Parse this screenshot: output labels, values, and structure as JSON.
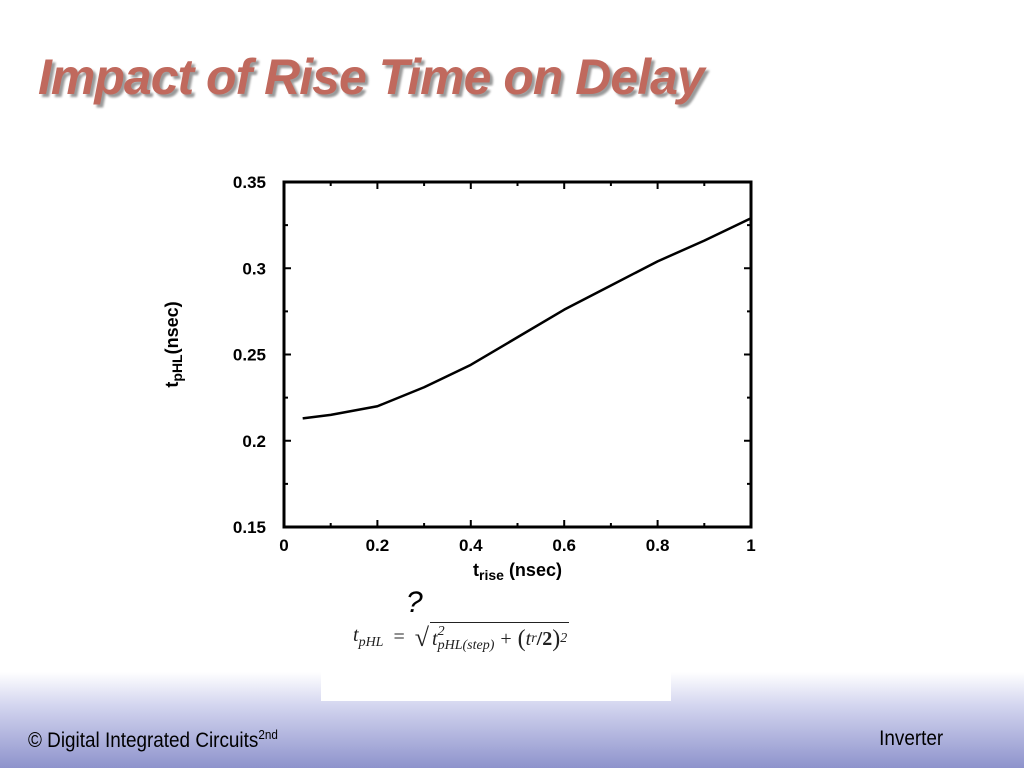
{
  "slide": {
    "title": "Impact of Rise Time on Delay",
    "title_color": "#c0695d"
  },
  "chart_data": {
    "type": "line",
    "xlabel": {
      "main": "t",
      "sub": "rise",
      "unit": " (nsec)"
    },
    "ylabel": {
      "main": "t",
      "sub": "pHL",
      "unit": "(nsec)"
    },
    "xlim": [
      0,
      1
    ],
    "ylim": [
      0.15,
      0.35
    ],
    "x_ticks": [
      0,
      0.2,
      0.4,
      0.6,
      0.8,
      1
    ],
    "x_tick_labels": [
      "0",
      "0.2",
      "0.4",
      "0.6",
      "0.8",
      "1"
    ],
    "y_ticks": [
      0.15,
      0.2,
      0.25,
      0.3,
      0.35
    ],
    "y_tick_labels": [
      "0.15",
      "0.2",
      "0.25",
      "0.3",
      "0.35"
    ],
    "grid": false,
    "series": [
      {
        "x": [
          0.04,
          0.1,
          0.2,
          0.3,
          0.4,
          0.5,
          0.6,
          0.7,
          0.8,
          0.9,
          1.0
        ],
        "y": [
          0.213,
          0.215,
          0.22,
          0.231,
          0.244,
          0.26,
          0.276,
          0.29,
          0.304,
          0.316,
          0.329
        ]
      }
    ]
  },
  "annotation": {
    "question_mark": "?"
  },
  "formula": {
    "lhs_var": "t",
    "lhs_sub": "pHL",
    "equals": "=",
    "radical": "√",
    "term1_var": "t",
    "term1_sup": "2",
    "term1_sub": "pHL(step)",
    "plus": "+",
    "open_paren": "(",
    "term2_var": "t",
    "term2_sub": "r",
    "term2_div": "/2",
    "close_paren": ")",
    "term2_sup": "2"
  },
  "footer": {
    "left_text": "© Digital Integrated Circuits",
    "left_sup": "2nd",
    "right_text": "Inverter"
  }
}
